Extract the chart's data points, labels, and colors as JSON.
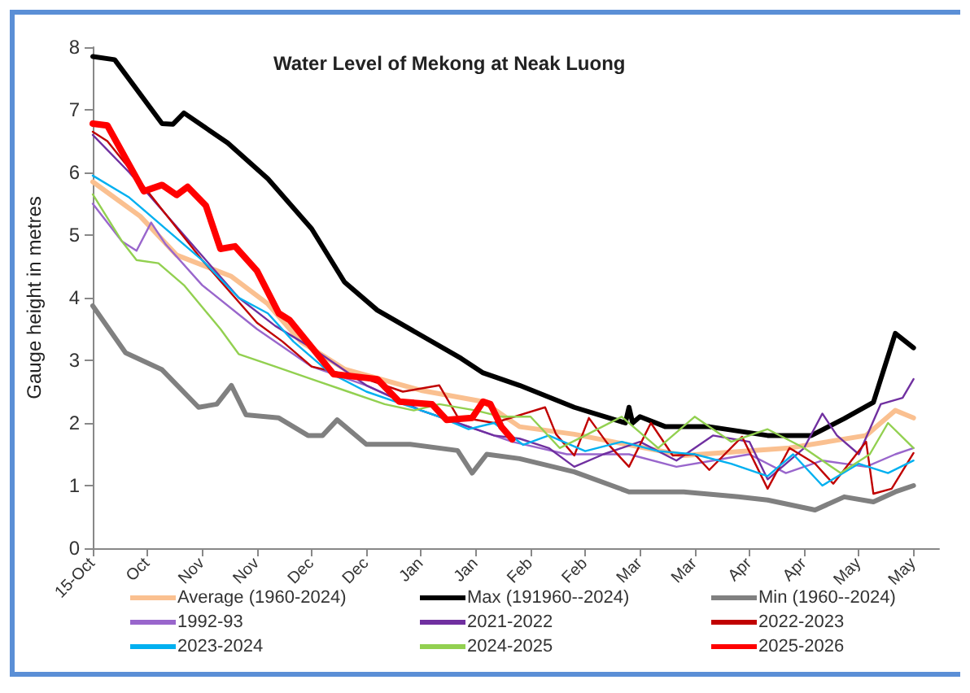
{
  "chart_data": {
    "type": "line",
    "title": "Water Level of Mekong at Neak Luong",
    "ylabel": "Gauge height in metres",
    "xlim": [
      "2025-10-15",
      "2026-06-04"
    ],
    "ylim": [
      0,
      8
    ],
    "yticks": [
      0,
      1,
      2,
      3,
      4,
      5,
      6,
      7,
      8
    ],
    "xticks": [
      {
        "value": "2025-10-15",
        "label": "15-Oct"
      },
      {
        "value": "2025-10-30",
        "label": "Oct"
      },
      {
        "value": "2025-11-14",
        "label": "Nov"
      },
      {
        "value": "2025-11-29",
        "label": "Nov"
      },
      {
        "value": "2025-12-14",
        "label": "Dec"
      },
      {
        "value": "2025-12-29",
        "label": "Dec"
      },
      {
        "value": "2026-01-13",
        "label": "Jan"
      },
      {
        "value": "2026-01-28",
        "label": "Jan"
      },
      {
        "value": "2026-02-12",
        "label": "Feb"
      },
      {
        "value": "2026-02-27",
        "label": "Feb"
      },
      {
        "value": "2026-03-14",
        "label": "Mar"
      },
      {
        "value": "2026-03-29",
        "label": "Mar"
      },
      {
        "value": "2026-04-13",
        "label": "Apr"
      },
      {
        "value": "2026-04-28",
        "label": "Apr"
      },
      {
        "value": "2026-05-13",
        "label": "May"
      },
      {
        "value": "2026-05-28",
        "label": "May"
      }
    ],
    "grid": false,
    "legend": "bottom",
    "marker": "none",
    "series": [
      {
        "name": "Average (1960-2024)",
        "color": "#fac090",
        "x": [
          "2025-10-15",
          "2025-10-28",
          "2025-11-07",
          "2025-11-22",
          "2025-12-02",
          "2025-12-11",
          "2025-12-23",
          "2026-01-13",
          "2026-01-30",
          "2026-02-09",
          "2026-02-24",
          "2026-03-26",
          "2026-04-24",
          "2026-05-15",
          "2026-05-23",
          "2026-05-28"
        ],
        "values": [
          5.85,
          5.3,
          4.68,
          4.34,
          3.9,
          3.3,
          2.86,
          2.52,
          2.34,
          1.94,
          1.82,
          1.48,
          1.6,
          1.8,
          2.2,
          2.08
        ]
      },
      {
        "name": "Max (191960--2024)",
        "color": "#000000",
        "x": [
          "2025-10-15",
          "2025-10-21",
          "2025-11-03",
          "2025-11-06",
          "2025-11-09",
          "2025-11-21",
          "2025-12-02",
          "2025-12-14",
          "2025-12-23",
          "2026-01-01",
          "2026-01-24",
          "2026-01-30",
          "2026-02-09",
          "2026-02-24",
          "2026-03-10",
          "2026-03-11",
          "2026-03-12",
          "2026-03-14",
          "2026-03-21",
          "2026-04-02",
          "2026-04-18",
          "2026-04-30",
          "2026-05-09",
          "2026-05-17",
          "2026-05-23",
          "2026-05-28"
        ],
        "values": [
          7.85,
          7.8,
          6.78,
          6.77,
          6.95,
          6.47,
          5.9,
          5.1,
          4.25,
          3.8,
          3.03,
          2.8,
          2.6,
          2.25,
          2.0,
          2.25,
          2.0,
          2.1,
          1.94,
          1.94,
          1.8,
          1.8,
          2.07,
          2.33,
          3.43,
          3.2
        ]
      },
      {
        "name": "Min (1960--2024)",
        "color": "#808080",
        "x": [
          "2025-10-15",
          "2025-10-24",
          "2025-11-03",
          "2025-11-13",
          "2025-11-18",
          "2025-11-22",
          "2025-11-26",
          "2025-12-05",
          "2025-12-13",
          "2025-12-17",
          "2025-12-21",
          "2025-12-29",
          "2026-01-10",
          "2026-01-23",
          "2026-01-27",
          "2026-01-31",
          "2026-02-09",
          "2026-02-24",
          "2026-03-11",
          "2026-03-26",
          "2026-04-10",
          "2026-04-18",
          "2026-05-01",
          "2026-05-09",
          "2026-05-17",
          "2026-05-23",
          "2026-05-28"
        ],
        "values": [
          3.87,
          3.12,
          2.85,
          2.25,
          2.3,
          2.6,
          2.13,
          2.08,
          1.8,
          1.8,
          2.05,
          1.66,
          1.66,
          1.56,
          1.2,
          1.5,
          1.43,
          1.22,
          0.9,
          0.9,
          0.82,
          0.77,
          0.61,
          0.82,
          0.74,
          0.9,
          1.0
        ]
      },
      {
        "name": "1992-93",
        "color": "#9966cc",
        "x": [
          "2025-10-15",
          "2025-10-23",
          "2025-10-27",
          "2025-10-31",
          "2025-11-04",
          "2025-11-14",
          "2025-11-29",
          "2025-12-14",
          "2025-12-29",
          "2026-01-13",
          "2026-01-28",
          "2026-02-07",
          "2026-02-22",
          "2026-03-11",
          "2026-03-24",
          "2026-04-03",
          "2026-04-13",
          "2026-04-23",
          "2026-05-03",
          "2026-05-15",
          "2026-05-23",
          "2026-05-28"
        ],
        "values": [
          5.5,
          4.9,
          4.75,
          5.2,
          4.85,
          4.2,
          3.5,
          2.9,
          2.6,
          2.2,
          1.9,
          1.7,
          1.5,
          1.5,
          1.3,
          1.4,
          1.5,
          1.2,
          1.4,
          1.3,
          1.5,
          1.6
        ]
      },
      {
        "name": "2021-2022",
        "color": "#7030a0",
        "x": [
          "2025-10-15",
          "2025-10-25",
          "2025-11-09",
          "2025-11-24",
          "2025-12-04",
          "2025-12-14",
          "2025-12-29",
          "2026-01-13",
          "2026-01-23",
          "2026-02-02",
          "2026-02-09",
          "2026-02-17",
          "2026-02-24",
          "2026-03-04",
          "2026-03-14",
          "2026-03-24",
          "2026-04-03",
          "2026-04-13",
          "2026-04-18",
          "2026-04-28",
          "2026-05-03",
          "2026-05-07",
          "2026-05-13",
          "2026-05-19",
          "2026-05-25",
          "2026-05-28"
        ],
        "values": [
          6.6,
          6.0,
          5.0,
          4.0,
          3.55,
          3.2,
          2.6,
          2.2,
          2.0,
          1.8,
          1.75,
          1.6,
          1.3,
          1.5,
          1.7,
          1.4,
          1.8,
          1.7,
          1.1,
          1.6,
          2.15,
          1.8,
          1.5,
          2.3,
          2.4,
          2.7
        ]
      },
      {
        "name": "2022-2023",
        "color": "#c00000",
        "x": [
          "2025-10-15",
          "2025-10-19",
          "2025-10-30",
          "2025-11-14",
          "2025-11-29",
          "2025-12-06",
          "2025-12-14",
          "2025-12-29",
          "2026-01-08",
          "2026-01-18",
          "2026-01-23",
          "2026-02-02",
          "2026-02-16",
          "2026-02-19",
          "2026-02-24",
          "2026-02-28",
          "2026-03-05",
          "2026-03-11",
          "2026-03-17",
          "2026-03-23",
          "2026-03-29",
          "2026-04-02",
          "2026-04-11",
          "2026-04-18",
          "2026-04-24",
          "2026-05-01",
          "2026-05-06",
          "2026-05-15",
          "2026-05-17",
          "2026-05-22",
          "2026-05-28"
        ],
        "values": [
          6.65,
          6.5,
          5.7,
          4.6,
          3.6,
          3.3,
          2.9,
          2.7,
          2.5,
          2.6,
          2.1,
          2.0,
          2.25,
          1.82,
          1.48,
          2.08,
          1.68,
          1.3,
          2.0,
          1.48,
          1.5,
          1.25,
          1.78,
          0.95,
          1.6,
          1.35,
          1.03,
          1.7,
          0.87,
          0.95,
          1.52
        ]
      },
      {
        "name": "2023-2024",
        "color": "#00b0f0",
        "x": [
          "2025-10-15",
          "2025-10-25",
          "2025-11-04",
          "2025-11-14",
          "2025-11-24",
          "2025-12-02",
          "2025-12-09",
          "2025-12-19",
          "2025-12-29",
          "2026-01-08",
          "2026-01-18",
          "2026-01-26",
          "2026-02-02",
          "2026-02-10",
          "2026-02-17",
          "2026-02-27",
          "2026-03-09",
          "2026-03-19",
          "2026-03-29",
          "2026-04-08",
          "2026-04-18",
          "2026-04-25",
          "2026-05-03",
          "2026-05-13",
          "2026-05-21",
          "2026-05-28"
        ],
        "values": [
          5.95,
          5.6,
          5.1,
          4.6,
          4.0,
          3.75,
          3.3,
          2.8,
          2.5,
          2.3,
          2.1,
          1.9,
          2.0,
          1.65,
          1.8,
          1.55,
          1.7,
          1.55,
          1.5,
          1.35,
          1.15,
          1.5,
          1.0,
          1.35,
          1.2,
          1.4
        ]
      },
      {
        "name": "2024-2025",
        "color": "#92d050",
        "x": [
          "2025-10-15",
          "2025-10-23",
          "2025-10-27",
          "2025-11-02",
          "2025-11-09",
          "2025-11-19",
          "2025-11-24",
          "2025-12-04",
          "2025-12-14",
          "2025-12-24",
          "2026-01-03",
          "2026-01-11",
          "2026-01-18",
          "2026-01-28",
          "2026-02-04",
          "2026-02-12",
          "2026-02-20",
          "2026-02-27",
          "2026-03-09",
          "2026-03-19",
          "2026-03-29",
          "2026-04-08",
          "2026-04-18",
          "2026-04-28",
          "2026-05-08",
          "2026-05-16",
          "2026-05-21",
          "2026-05-28"
        ],
        "values": [
          5.65,
          4.9,
          4.6,
          4.55,
          4.2,
          3.5,
          3.1,
          2.9,
          2.7,
          2.5,
          2.3,
          2.2,
          2.3,
          2.2,
          2.1,
          2.1,
          1.6,
          1.8,
          2.1,
          1.6,
          2.1,
          1.7,
          1.9,
          1.6,
          1.2,
          1.5,
          2.0,
          1.6
        ]
      },
      {
        "name": "2025-2026",
        "color": "#ff0000",
        "x": [
          "2025-10-15",
          "2025-10-19",
          "2025-10-29",
          "2025-11-03",
          "2025-11-07",
          "2025-11-10",
          "2025-11-15",
          "2025-11-19",
          "2025-11-23",
          "2025-11-29",
          "2025-12-05",
          "2025-12-08",
          "2025-12-20",
          "2026-01-01",
          "2026-01-07",
          "2026-01-16",
          "2026-01-20",
          "2026-01-27",
          "2026-01-30",
          "2026-02-01",
          "2026-02-04",
          "2026-02-07"
        ],
        "values": [
          6.78,
          6.75,
          5.7,
          5.8,
          5.64,
          5.77,
          5.47,
          4.78,
          4.82,
          4.43,
          3.75,
          3.64,
          2.78,
          2.7,
          2.34,
          2.3,
          2.05,
          2.08,
          2.34,
          2.3,
          1.94,
          1.74
        ]
      }
    ]
  }
}
